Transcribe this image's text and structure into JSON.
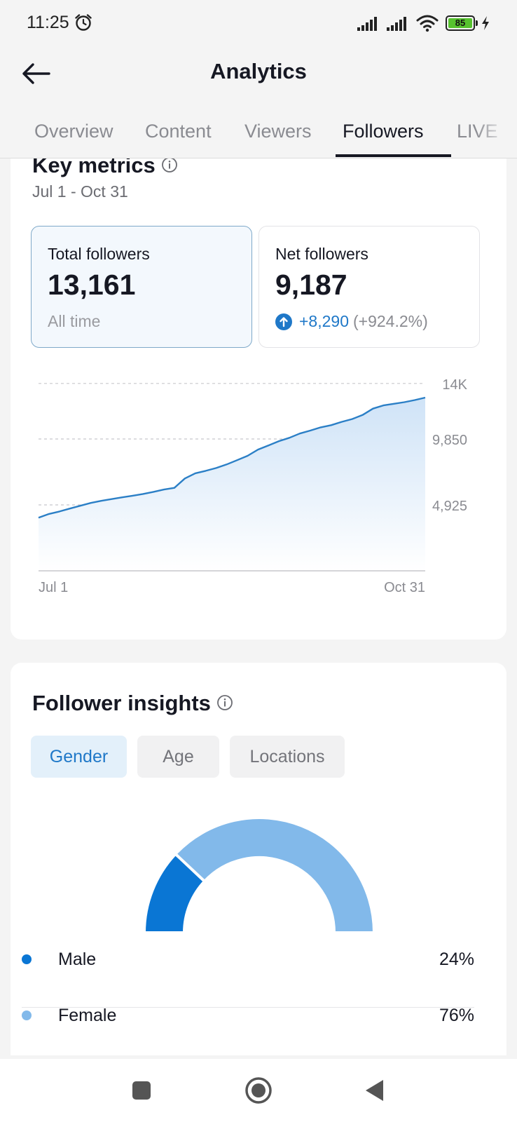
{
  "status_bar": {
    "time": "11:25",
    "battery_level": "85"
  },
  "header": {
    "title": "Analytics"
  },
  "tabs": [
    {
      "label": "Overview",
      "active": false
    },
    {
      "label": "Content",
      "active": false
    },
    {
      "label": "Viewers",
      "active": false
    },
    {
      "label": "Followers",
      "active": true
    },
    {
      "label": "LIVE",
      "active": false
    }
  ],
  "key_metrics": {
    "title": "Key metrics",
    "date_range": "Jul 1 - Oct 31",
    "total_followers": {
      "label": "Total followers",
      "value": "13,161",
      "sub": "All time"
    },
    "net_followers": {
      "label": "Net followers",
      "value": "9,187",
      "change_abs": "+8,290",
      "change_pct": "(+924.2%)"
    }
  },
  "chart_data": {
    "type": "area",
    "x_labels": [
      "Jul 1",
      "Oct 31"
    ],
    "y_tick_labels": [
      "4,925",
      "9,850",
      "14K"
    ],
    "y_ticks": [
      4925,
      9850,
      14000
    ],
    "ylim": [
      0,
      14775
    ],
    "grid": true,
    "values": [
      3970,
      4250,
      4430,
      4650,
      4860,
      5070,
      5230,
      5360,
      5490,
      5610,
      5740,
      5900,
      6070,
      6200,
      6900,
      7290,
      7470,
      7680,
      7950,
      8270,
      8590,
      9060,
      9370,
      9690,
      9940,
      10260,
      10480,
      10720,
      10880,
      11130,
      11340,
      11640,
      12120,
      12360,
      12480,
      12600,
      12760,
      12940
    ],
    "colors": {
      "line": "#2b7fc6",
      "fill_top": "#cfe3f7",
      "fill_bottom": "#ffffff"
    }
  },
  "insights": {
    "title": "Follower insights",
    "pills": [
      {
        "label": "Gender",
        "active": true
      },
      {
        "label": "Age",
        "active": false
      },
      {
        "label": "Locations",
        "active": false
      }
    ],
    "gender": [
      {
        "label": "Male",
        "value": "24%",
        "share": 24,
        "color": "#0a76d4"
      },
      {
        "label": "Female",
        "value": "76%",
        "share": 76,
        "color": "#82b9ea"
      }
    ]
  }
}
